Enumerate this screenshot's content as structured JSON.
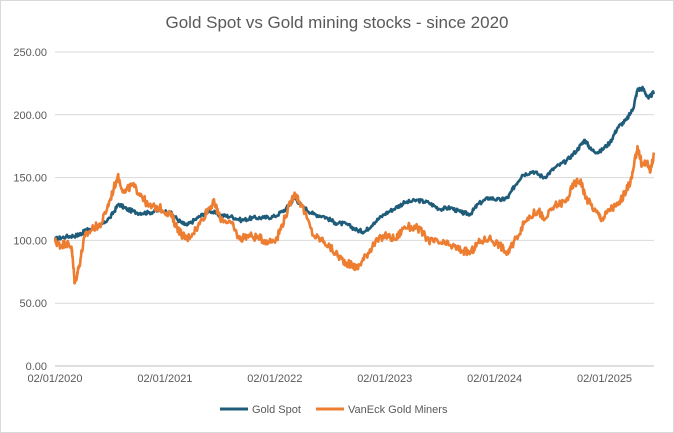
{
  "chart_data": {
    "type": "line",
    "title": "Gold Spot vs Gold mining stocks - since 2020",
    "xlabel": "",
    "ylabel": "",
    "ylim": [
      0,
      250
    ],
    "y_ticks": [
      "0.00",
      "50.00",
      "100.00",
      "150.00",
      "200.00",
      "250.00"
    ],
    "x_ticks": [
      "02/01/2020",
      "02/01/2021",
      "02/01/2022",
      "02/01/2023",
      "02/01/2024",
      "02/01/2025"
    ],
    "x_range_years": [
      2020.0,
      2025.45
    ],
    "grid": true,
    "legend_position": "bottom",
    "series": [
      {
        "name": "Gold Spot",
        "color": "#1f5c7a",
        "points": [
          [
            2020.0,
            101
          ],
          [
            2020.1,
            103
          ],
          [
            2020.2,
            104
          ],
          [
            2020.25,
            106
          ],
          [
            2020.3,
            109
          ],
          [
            2020.4,
            111
          ],
          [
            2020.5,
            118
          ],
          [
            2020.58,
            129
          ],
          [
            2020.65,
            125
          ],
          [
            2020.75,
            122
          ],
          [
            2020.85,
            122
          ],
          [
            2020.95,
            124
          ],
          [
            2021.05,
            122
          ],
          [
            2021.15,
            114
          ],
          [
            2021.2,
            112
          ],
          [
            2021.3,
            118
          ],
          [
            2021.4,
            124
          ],
          [
            2021.5,
            120
          ],
          [
            2021.6,
            119
          ],
          [
            2021.7,
            116
          ],
          [
            2021.8,
            118
          ],
          [
            2021.9,
            118
          ],
          [
            2022.0,
            119
          ],
          [
            2022.1,
            125
          ],
          [
            2022.18,
            134
          ],
          [
            2022.25,
            127
          ],
          [
            2022.35,
            121
          ],
          [
            2022.45,
            119
          ],
          [
            2022.55,
            114
          ],
          [
            2022.65,
            113
          ],
          [
            2022.75,
            108
          ],
          [
            2022.82,
            107
          ],
          [
            2022.9,
            114
          ],
          [
            2023.0,
            121
          ],
          [
            2023.1,
            126
          ],
          [
            2023.18,
            130
          ],
          [
            2023.3,
            132
          ],
          [
            2023.4,
            130
          ],
          [
            2023.5,
            125
          ],
          [
            2023.6,
            126
          ],
          [
            2023.7,
            122
          ],
          [
            2023.78,
            121
          ],
          [
            2023.85,
            129
          ],
          [
            2023.95,
            134
          ],
          [
            2024.05,
            132
          ],
          [
            2024.12,
            134
          ],
          [
            2024.18,
            143
          ],
          [
            2024.25,
            152
          ],
          [
            2024.35,
            155
          ],
          [
            2024.45,
            150
          ],
          [
            2024.55,
            158
          ],
          [
            2024.65,
            163
          ],
          [
            2024.75,
            172
          ],
          [
            2024.82,
            180
          ],
          [
            2024.88,
            172
          ],
          [
            2024.95,
            170
          ],
          [
            2025.05,
            178
          ],
          [
            2025.12,
            190
          ],
          [
            2025.2,
            196
          ],
          [
            2025.26,
            205
          ],
          [
            2025.3,
            220
          ],
          [
            2025.35,
            221
          ],
          [
            2025.4,
            213
          ],
          [
            2025.45,
            218
          ]
        ]
      },
      {
        "name": "VanEck Gold Miners",
        "color": "#ed7d31",
        "points": [
          [
            2020.0,
            99
          ],
          [
            2020.05,
            96
          ],
          [
            2020.1,
            98
          ],
          [
            2020.15,
            95
          ],
          [
            2020.18,
            66
          ],
          [
            2020.22,
            80
          ],
          [
            2020.27,
            103
          ],
          [
            2020.35,
            110
          ],
          [
            2020.42,
            113
          ],
          [
            2020.5,
            132
          ],
          [
            2020.57,
            151
          ],
          [
            2020.63,
            138
          ],
          [
            2020.7,
            144
          ],
          [
            2020.78,
            137
          ],
          [
            2020.85,
            127
          ],
          [
            2020.95,
            126
          ],
          [
            2021.05,
            121
          ],
          [
            2021.1,
            112
          ],
          [
            2021.15,
            105
          ],
          [
            2021.2,
            101
          ],
          [
            2021.3,
            111
          ],
          [
            2021.4,
            126
          ],
          [
            2021.45,
            130
          ],
          [
            2021.5,
            118
          ],
          [
            2021.6,
            114
          ],
          [
            2021.68,
            101
          ],
          [
            2021.75,
            104
          ],
          [
            2021.85,
            102
          ],
          [
            2021.95,
            99
          ],
          [
            2022.02,
            102
          ],
          [
            2022.1,
            120
          ],
          [
            2022.18,
            138
          ],
          [
            2022.25,
            127
          ],
          [
            2022.35,
            104
          ],
          [
            2022.45,
            99
          ],
          [
            2022.55,
            90
          ],
          [
            2022.62,
            84
          ],
          [
            2022.7,
            80
          ],
          [
            2022.75,
            78
          ],
          [
            2022.83,
            88
          ],
          [
            2022.9,
            97
          ],
          [
            2023.0,
            104
          ],
          [
            2023.1,
            101
          ],
          [
            2023.18,
            111
          ],
          [
            2023.3,
            110
          ],
          [
            2023.4,
            100
          ],
          [
            2023.5,
            98
          ],
          [
            2023.6,
            96
          ],
          [
            2023.7,
            92
          ],
          [
            2023.78,
            90
          ],
          [
            2023.85,
            98
          ],
          [
            2023.95,
            102
          ],
          [
            2024.05,
            96
          ],
          [
            2024.12,
            89
          ],
          [
            2024.2,
            103
          ],
          [
            2024.3,
            118
          ],
          [
            2024.4,
            124
          ],
          [
            2024.45,
            116
          ],
          [
            2024.55,
            128
          ],
          [
            2024.65,
            131
          ],
          [
            2024.72,
            145
          ],
          [
            2024.78,
            148
          ],
          [
            2024.83,
            134
          ],
          [
            2024.92,
            123
          ],
          [
            2024.98,
            117
          ],
          [
            2025.05,
            125
          ],
          [
            2025.12,
            128
          ],
          [
            2025.2,
            140
          ],
          [
            2025.25,
            150
          ],
          [
            2025.3,
            175
          ],
          [
            2025.34,
            160
          ],
          [
            2025.38,
            162
          ],
          [
            2025.42,
            156
          ],
          [
            2025.45,
            170
          ]
        ]
      }
    ]
  }
}
